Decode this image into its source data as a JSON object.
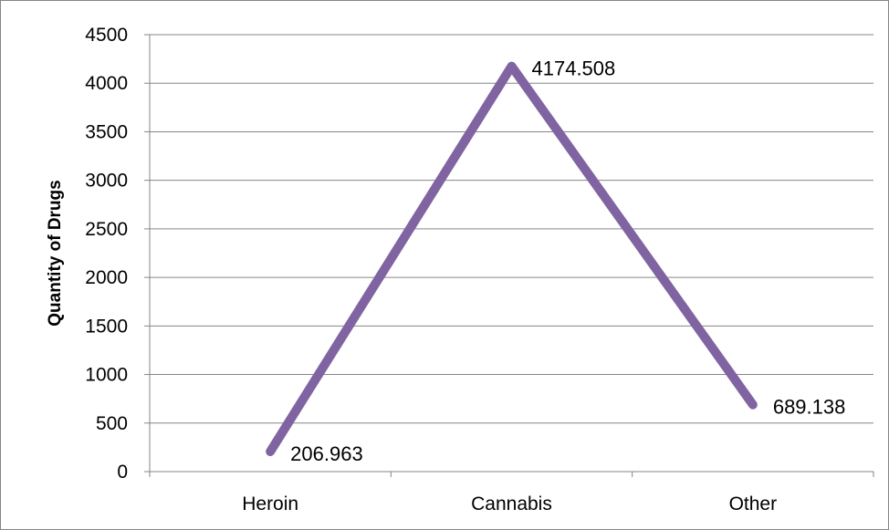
{
  "chart_data": {
    "type": "line",
    "title": "",
    "xlabel": "",
    "ylabel": "Quantity of Drugs",
    "categories": [
      "Heroin",
      "Cannabis",
      "Other"
    ],
    "series": [
      {
        "values": [
          206.963,
          4174.508,
          689.138
        ],
        "data_labels": [
          "206.963",
          "4174.508",
          "689.138"
        ]
      }
    ],
    "ylim": [
      0,
      4500
    ],
    "yticks": [
      0,
      500,
      1000,
      1500,
      2000,
      2500,
      3000,
      3500,
      4000,
      4500
    ],
    "grid": true,
    "legend": "none",
    "colors": {
      "line": "#8064A2",
      "grid": "#868686",
      "axis": "#868686",
      "frame": "#868686"
    }
  }
}
